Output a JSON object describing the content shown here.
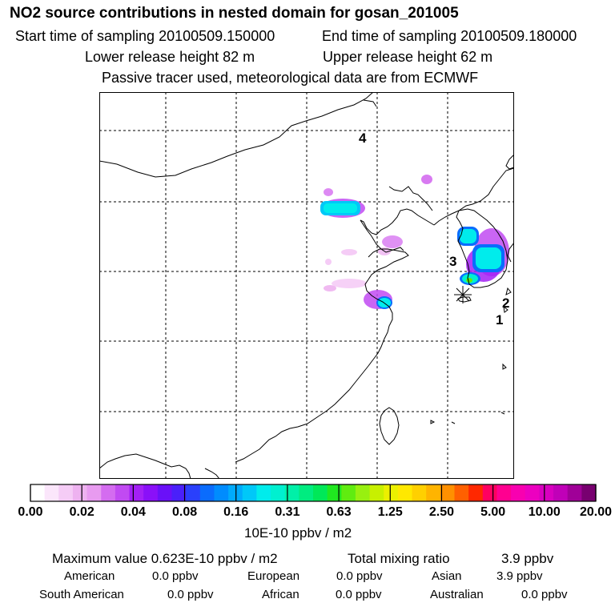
{
  "header": {
    "title": "NO2 source contributions in nested domain for gosan_201005",
    "start_time": "Start time of sampling 20100509.150000",
    "end_time": "End time of sampling 20100509.180000",
    "lower_release": "Lower release height   82 m",
    "upper_release": "Upper release height   62 m",
    "tracer_note": "Passive tracer used, meteorological data are from ECMWF"
  },
  "map": {
    "site_labels": [
      "4",
      "3",
      "2",
      "1"
    ],
    "release_marker": "receptor-asterisk-icon"
  },
  "colorbar": {
    "colors": [
      "#ffffff",
      "#fbe6fb",
      "#f5ccf6",
      "#eeb2f0",
      "#e89bf0",
      "#d46cf0",
      "#c14af2",
      "#a320f5",
      "#8a10f8",
      "#6a10f8",
      "#4a20fa",
      "#2a40fc",
      "#0a6cfd",
      "#008cfe",
      "#00aafc",
      "#00c8f8",
      "#00ecec",
      "#00f0d0",
      "#00f0a8",
      "#00ec80",
      "#00e858",
      "#20e820",
      "#60ec10",
      "#98f010",
      "#c8f000",
      "#ecf000",
      "#ffe800",
      "#ffd000",
      "#ffb400",
      "#ff9000",
      "#ff6000",
      "#ff2800",
      "#ff0060",
      "#ff0090",
      "#f800b0",
      "#ec00c0",
      "#d800c0",
      "#c000b8",
      "#a00098",
      "#780070"
    ],
    "tick_labels": [
      "0.00",
      "0.02",
      "0.04",
      "0.08",
      "0.16",
      "0.31",
      "0.63",
      "1.25",
      "2.50",
      "5.00",
      "10.00",
      "20.00"
    ],
    "unit": "10E-10 ppbv / m2"
  },
  "summary": {
    "max_label": "Maximum value  0.623E-10 ppbv / m2",
    "total_label": "Total mixing ratio",
    "total_value": "3.9 ppbv",
    "row1": [
      {
        "name": "American",
        "value": "0.0 ppbv"
      },
      {
        "name": "European",
        "value": "0.0 ppbv"
      },
      {
        "name": "Asian",
        "value": "3.9 ppbv"
      }
    ],
    "row2": [
      {
        "name": "South American",
        "value": "0.0 ppbv"
      },
      {
        "name": "African",
        "value": "0.0 ppbv"
      },
      {
        "name": "Australian",
        "value": "0.0 ppbv"
      }
    ]
  }
}
